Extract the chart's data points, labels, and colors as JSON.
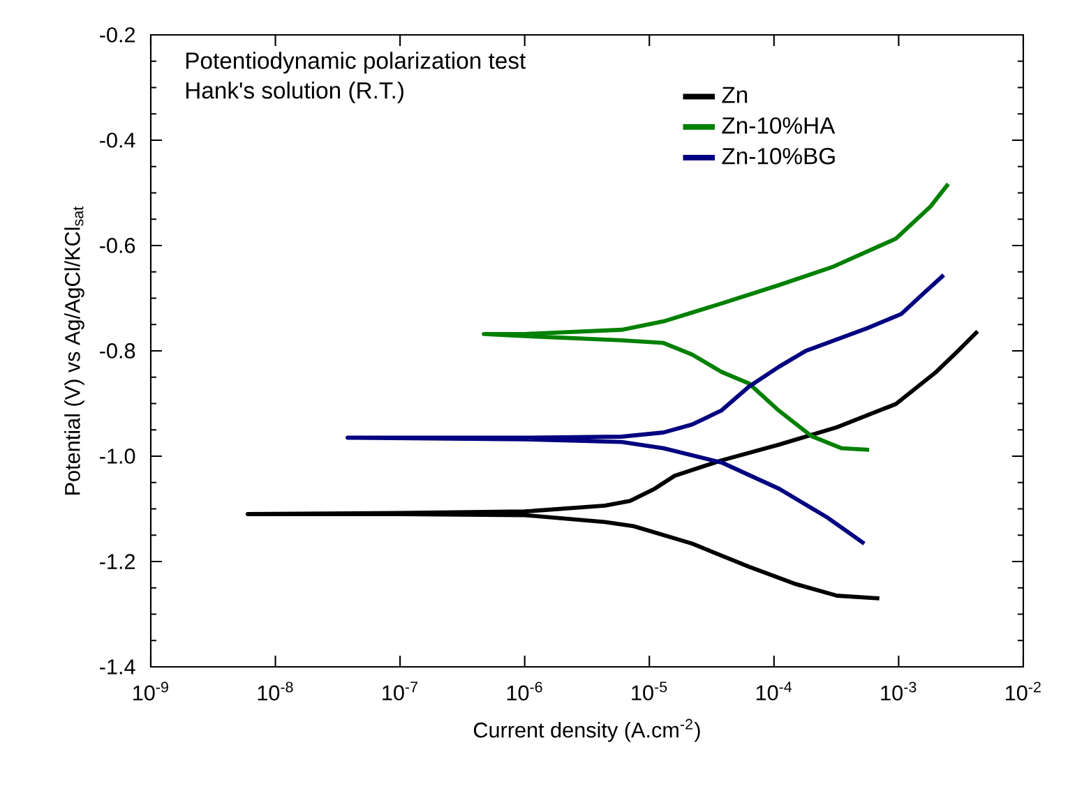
{
  "chart_data": {
    "type": "line",
    "xlabel": "Current density (A.cm$^{-2}$)",
    "ylabel": "Potential (V) vs Ag/AgCl/KCl$_{sat}$",
    "annotations": [
      "Potentiodynamic polarization test",
      "Hank's solution (R.T.)"
    ],
    "log": "x",
    "legend": "top right",
    "marker": "none",
    "line_style": "solid",
    "xlim": [
      1e-09,
      0.01
    ],
    "ylim": [
      -1.4,
      -0.2
    ],
    "xticks": [
      {
        "value": 1e-09,
        "label": "10$^{-9}$"
      },
      {
        "value": 1e-08,
        "label": "10$^{-8}$"
      },
      {
        "value": 1e-07,
        "label": "10$^{-7}$"
      },
      {
        "value": 1e-06,
        "label": "10$^{-6}$"
      },
      {
        "value": 1e-05,
        "label": "10$^{-5}$"
      },
      {
        "value": 0.0001,
        "label": "10$^{-4}$"
      },
      {
        "value": 0.001,
        "label": "10$^{-3}$"
      },
      {
        "value": 0.01,
        "label": "10$^{-2}$"
      }
    ],
    "yticks": [
      -1.4,
      -1.2,
      {
        "value": -1.0,
        "label": "-1.0"
      },
      -0.8,
      -0.6,
      -0.4,
      -0.2
    ],
    "series": [
      {
        "name": "Zn",
        "color": "#000000",
        "x": [
          0.0007,
          0.00032,
          0.00015,
          6.3e-05,
          2.2e-05,
          7.5e-06,
          4.4e-06,
          1e-06,
          1e-07,
          6e-09,
          1e-07,
          1e-06,
          4.4e-06,
          7e-06,
          1.1e-05,
          1.6e-05,
          3.8e-05,
          0.00011,
          0.00032,
          0.00095,
          0.002,
          0.003,
          0.0043
        ],
        "values": [
          -1.27,
          -1.265,
          -1.243,
          -1.21,
          -1.166,
          -1.133,
          -1.125,
          -1.112,
          -1.11,
          -1.11,
          -1.108,
          -1.105,
          -1.094,
          -1.085,
          -1.062,
          -1.037,
          -1.008,
          -0.978,
          -0.945,
          -0.901,
          -0.84,
          -0.8,
          -0.763
        ]
      },
      {
        "name": "Zn-10%HA",
        "color": "#008000",
        "x": [
          0.00058,
          0.00035,
          0.0002,
          0.00011,
          6.3e-05,
          3.8e-05,
          2.2e-05,
          1.3e-05,
          6e-06,
          1e-06,
          4.7e-07,
          1e-06,
          6e-06,
          1.3e-05,
          3.8e-05,
          0.00011,
          0.0003,
          0.00095,
          0.0018,
          0.0025
        ],
        "values": [
          -0.988,
          -0.985,
          -0.962,
          -0.914,
          -0.862,
          -0.84,
          -0.807,
          -0.785,
          -0.78,
          -0.772,
          -0.768,
          -0.768,
          -0.76,
          -0.744,
          -0.71,
          -0.675,
          -0.64,
          -0.587,
          -0.526,
          -0.483
        ]
      },
      {
        "name": "Zn-10%BG",
        "color": "#000080",
        "x": [
          0.00053,
          0.00027,
          0.00011,
          3.8e-05,
          1.3e-05,
          6e-06,
          1e-06,
          3.8e-08,
          1e-06,
          6e-06,
          1.3e-05,
          2.2e-05,
          3.8e-05,
          6.3e-05,
          0.00011,
          0.00018,
          0.00056,
          0.00105,
          0.0016,
          0.0023
        ],
        "values": [
          -1.166,
          -1.117,
          -1.062,
          -1.012,
          -0.985,
          -0.973,
          -0.968,
          -0.965,
          -0.965,
          -0.963,
          -0.955,
          -0.94,
          -0.913,
          -0.868,
          -0.83,
          -0.8,
          -0.757,
          -0.73,
          -0.69,
          -0.656
        ]
      }
    ]
  }
}
